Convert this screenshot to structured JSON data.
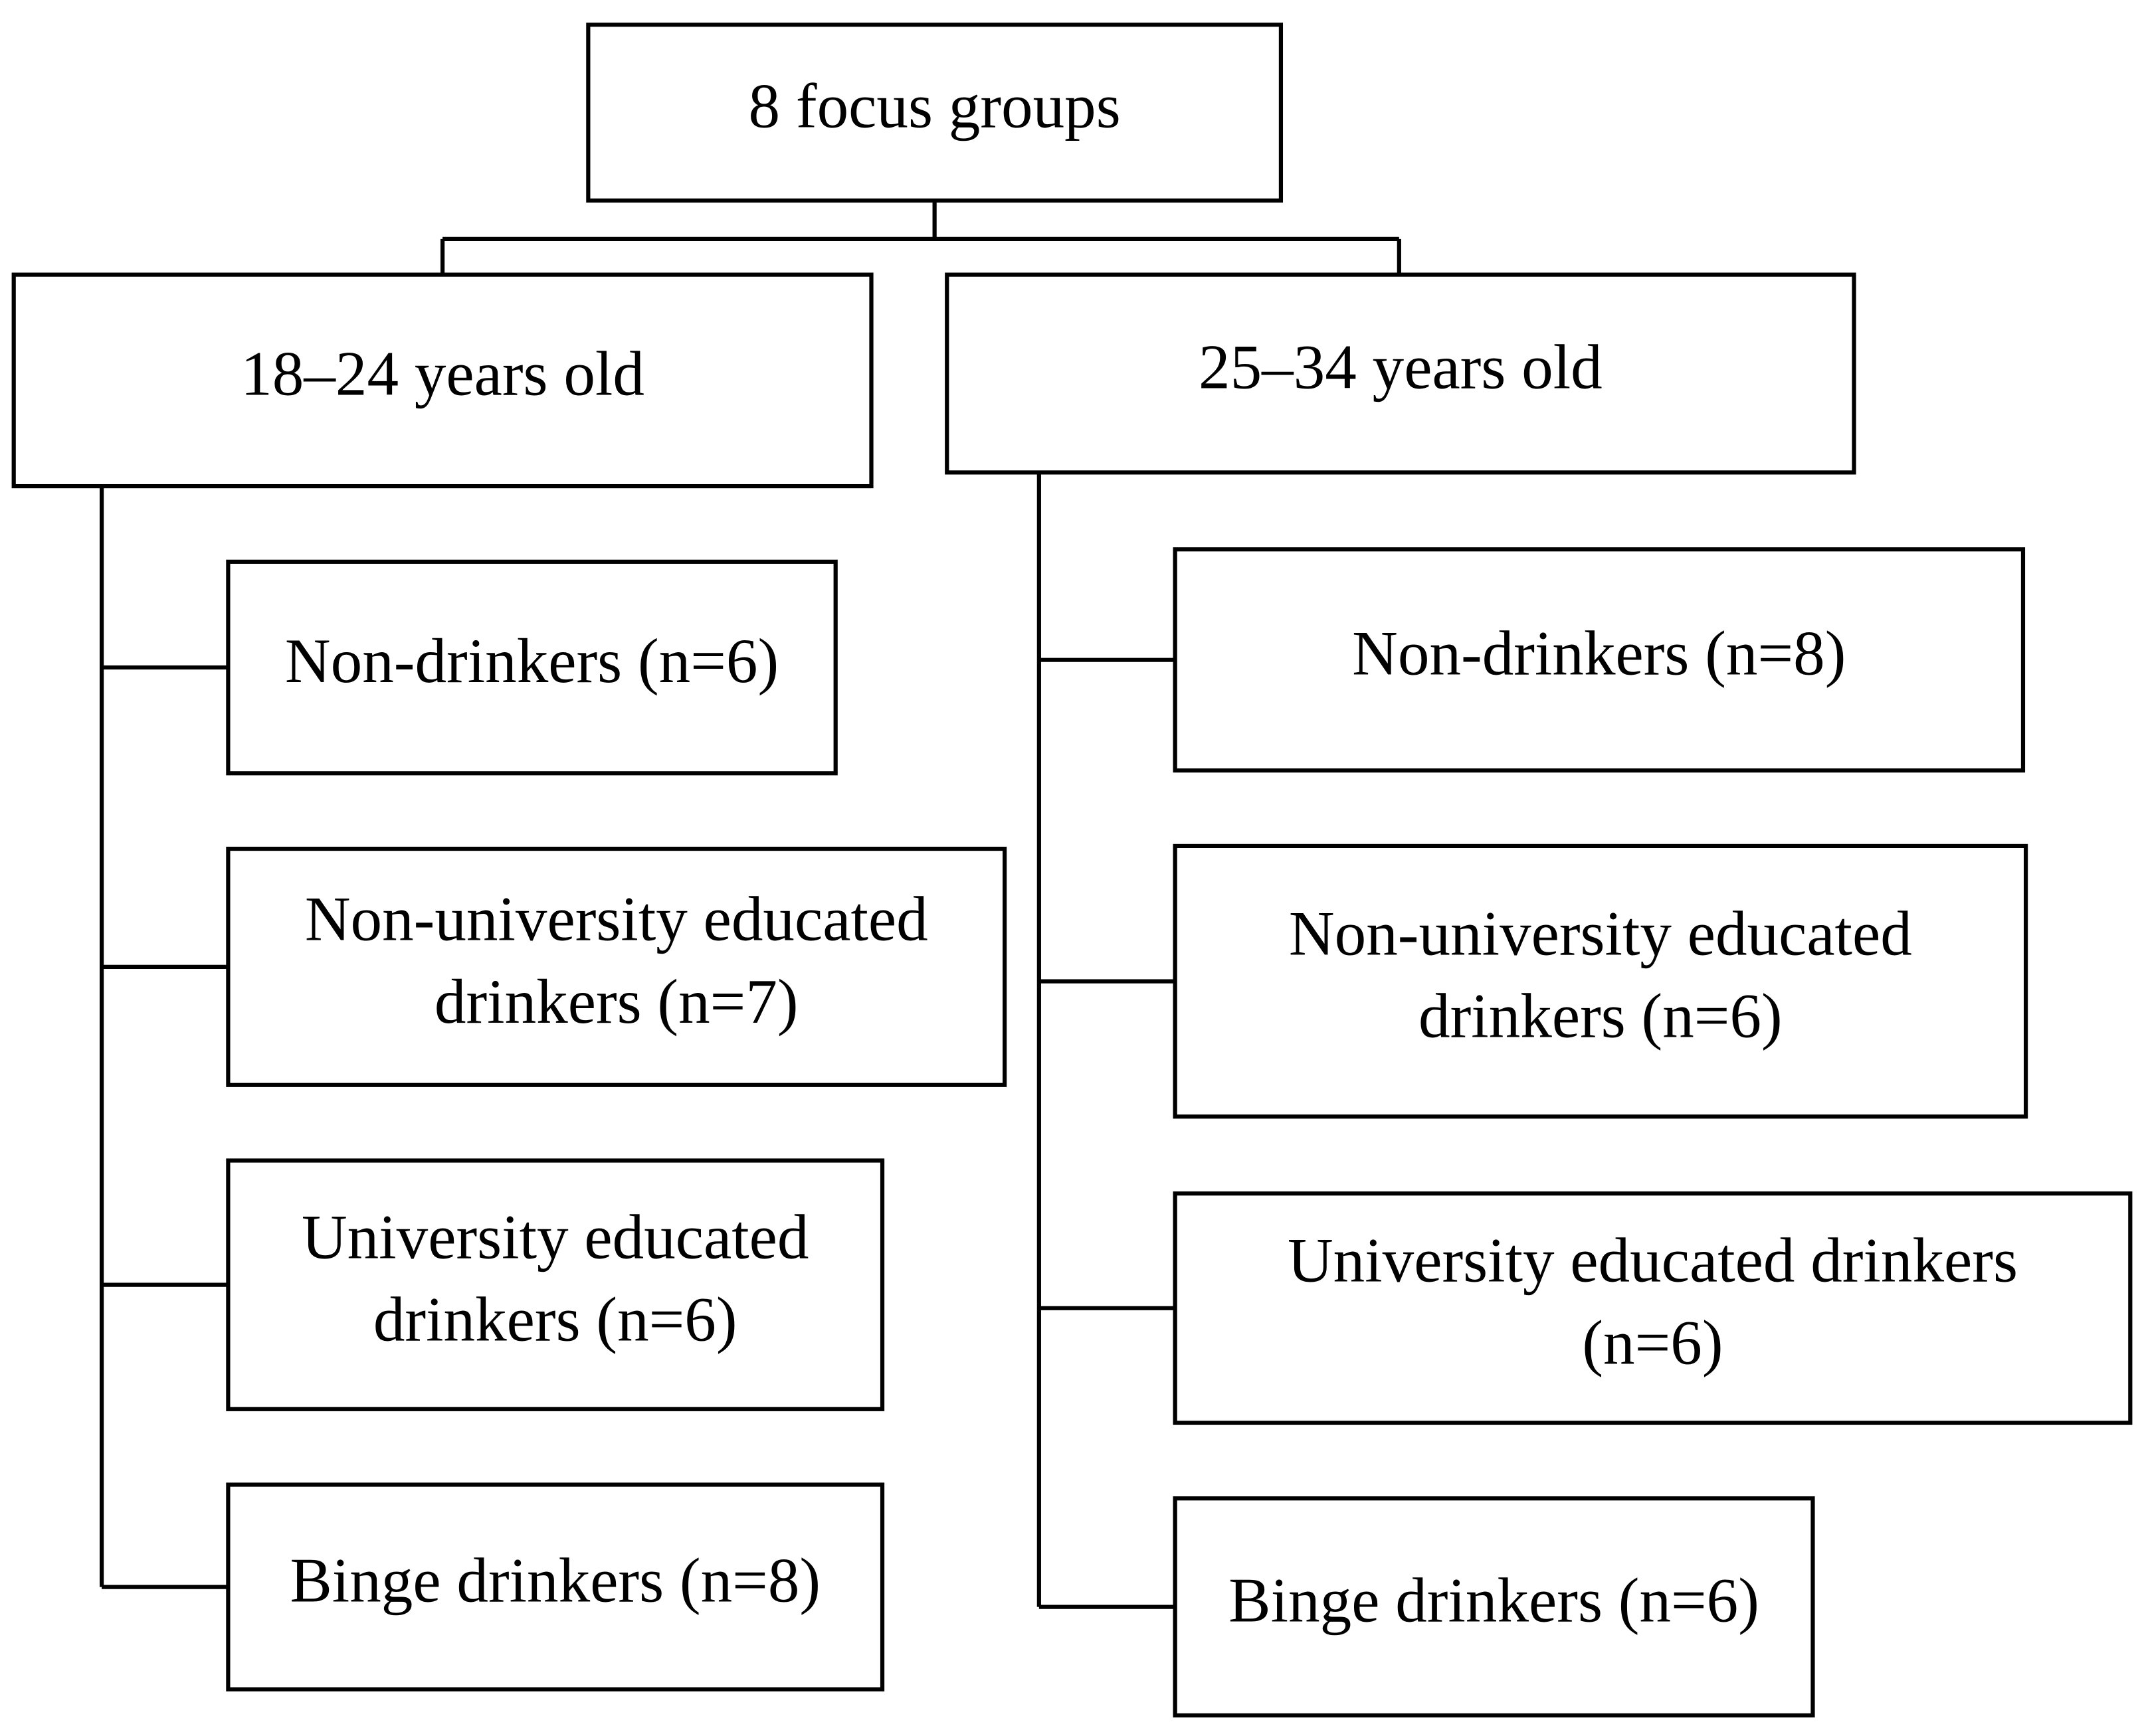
{
  "root": {
    "label": "8 focus groups"
  },
  "groups": [
    {
      "label": "18–24 years old",
      "children": [
        {
          "lines": [
            "Non-drinkers (n=6)"
          ]
        },
        {
          "lines": [
            "Non-university educated",
            "drinkers (n=7)"
          ]
        },
        {
          "lines": [
            "University educated",
            "drinkers (n=6)"
          ]
        },
        {
          "lines": [
            "Binge drinkers (n=8)"
          ]
        }
      ]
    },
    {
      "label": "25–34 years old",
      "children": [
        {
          "lines": [
            "Non-drinkers (n=8)"
          ]
        },
        {
          "lines": [
            "Non-university educated",
            "drinkers (n=6)"
          ]
        },
        {
          "lines": [
            "University educated drinkers",
            "(n=6)"
          ]
        },
        {
          "lines": [
            "Binge drinkers (n=6)"
          ]
        }
      ]
    }
  ]
}
